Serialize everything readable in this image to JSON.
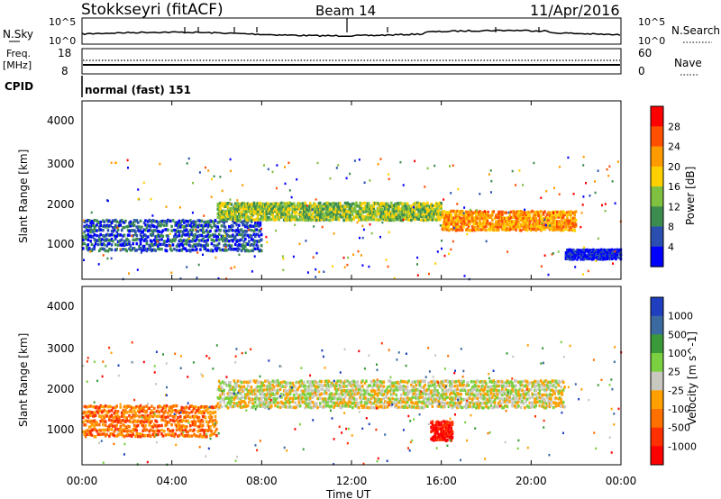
{
  "header": {
    "station": "Stokkseyri (fitACF)",
    "beam": "Beam 14",
    "date": "11/Apr/2016"
  },
  "chart_data": [
    {
      "type": "line",
      "panel": "noise",
      "left_label": "N.Sky",
      "right_label": "N.Search",
      "left_ticks": [
        "10^5",
        "10^0"
      ],
      "right_ticks": [
        "10^5",
        "10^0"
      ]
    },
    {
      "type": "line",
      "panel": "frequency",
      "left_label_top": "Freq.",
      "left_label_bottom": "[MHz]",
      "right_label": "Nave",
      "left_ticks": [
        "18",
        "8"
      ],
      "right_ticks": [
        "60",
        "0"
      ],
      "cpid_label": "CPID",
      "cpid_text": "normal (fast) 151"
    },
    {
      "type": "heatmap",
      "panel": "power",
      "ylabel": "Slant Range [km]",
      "ylim": [
        200,
        4500
      ],
      "yticks": [
        "4000",
        "3000",
        "2000",
        "1000"
      ],
      "colorbar_label": "Power [dB]",
      "colorbar_ticks": [
        "28",
        "24",
        "20",
        "16",
        "12",
        "8",
        "4"
      ],
      "colors": [
        "#ff0000",
        "#ff5000",
        "#ff9a00",
        "#ffd000",
        "#80c040",
        "#3c8c50",
        "#2a4fb0",
        "#0000ff"
      ],
      "bands": [
        {
          "t_start": 0.0,
          "t_end": 8.0,
          "r_low": 900,
          "r_high": 1700,
          "level": 6
        },
        {
          "t_start": 6.0,
          "t_end": 16.0,
          "r_low": 1650,
          "r_high": 2100,
          "level": 4
        },
        {
          "t_start": 16.0,
          "t_end": 22.0,
          "r_low": 1400,
          "r_high": 1900,
          "level": 2
        },
        {
          "t_start": 21.5,
          "t_end": 24.0,
          "r_low": 700,
          "r_high": 950,
          "level": 7
        }
      ]
    },
    {
      "type": "heatmap",
      "panel": "velocity",
      "ylabel": "Slant Range [km]",
      "ylim": [
        200,
        4500
      ],
      "yticks": [
        "4000",
        "3000",
        "2000",
        "1000"
      ],
      "colorbar_label": "Velocity [m s^-1]",
      "colorbar_ticks": [
        "1000",
        "500",
        "100",
        "25",
        "-25",
        "-100",
        "-500",
        "-1000"
      ],
      "colors": [
        "#1f3fc0",
        "#3a6aa0",
        "#3a9a3a",
        "#7ad040",
        "#c8c8c0",
        "#ffa000",
        "#ff7000",
        "#ff3000",
        "#ff0000"
      ],
      "bands": [
        {
          "t_start": 0.0,
          "t_end": 6.0,
          "r_low": 900,
          "r_high": 1700,
          "level": 6
        },
        {
          "t_start": 6.0,
          "t_end": 21.5,
          "r_low": 1600,
          "r_high": 2300,
          "level": 4
        },
        {
          "t_start": 15.5,
          "t_end": 16.5,
          "r_low": 800,
          "r_high": 1300,
          "level": 8
        }
      ],
      "xlabel": "Time UT",
      "xticks": [
        "00:00",
        "04:00",
        "08:00",
        "12:00",
        "16:00",
        "20:00",
        "00:00"
      ]
    }
  ]
}
